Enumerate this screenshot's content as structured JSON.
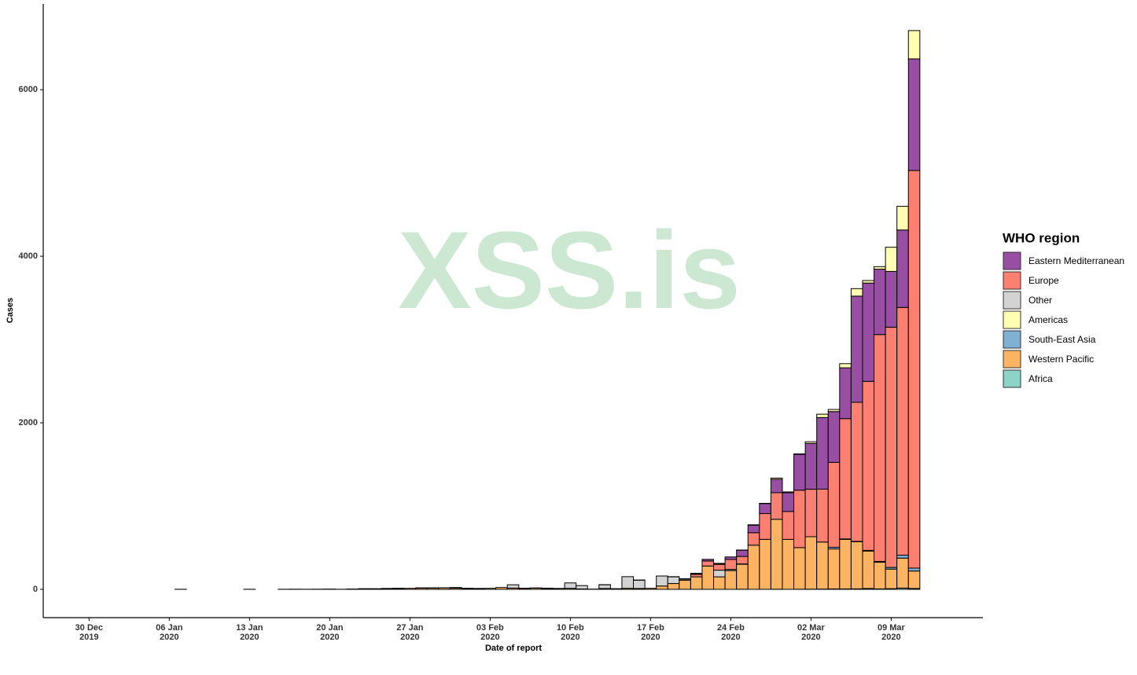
{
  "chart_data": {
    "type": "stacked-bar",
    "watermark": "XSS.is",
    "x_label": "Date of report",
    "y_label": "Cases",
    "legend_title": "WHO region",
    "x": [
      "2020-01-07",
      "2020-01-08",
      "2020-01-09",
      "2020-01-10",
      "2020-01-11",
      "2020-01-12",
      "2020-01-13",
      "2020-01-14",
      "2020-01-15",
      "2020-01-16",
      "2020-01-17",
      "2020-01-18",
      "2020-01-19",
      "2020-01-20",
      "2020-01-21",
      "2020-01-22",
      "2020-01-23",
      "2020-01-24",
      "2020-01-25",
      "2020-01-26",
      "2020-01-27",
      "2020-01-28",
      "2020-01-29",
      "2020-01-30",
      "2020-01-31",
      "2020-02-01",
      "2020-02-02",
      "2020-02-03",
      "2020-02-04",
      "2020-02-05",
      "2020-02-06",
      "2020-02-07",
      "2020-02-08",
      "2020-02-09",
      "2020-02-10",
      "2020-02-11",
      "2020-02-12",
      "2020-02-13",
      "2020-02-14",
      "2020-02-15",
      "2020-02-16",
      "2020-02-17",
      "2020-02-18",
      "2020-02-19",
      "2020-02-20",
      "2020-02-21",
      "2020-02-22",
      "2020-02-23",
      "2020-02-24",
      "2020-02-25",
      "2020-02-26",
      "2020-02-27",
      "2020-02-28",
      "2020-02-29",
      "2020-03-01",
      "2020-03-02",
      "2020-03-03",
      "2020-03-04",
      "2020-03-05",
      "2020-03-06",
      "2020-03-07",
      "2020-03-08",
      "2020-03-09",
      "2020-03-10",
      "2020-03-11"
    ],
    "series": [
      {
        "name": "Eastern Mediterranean",
        "color": "#984ea3",
        "values": [
          0,
          0,
          0,
          0,
          0,
          0,
          0,
          0,
          0,
          0,
          0,
          0,
          0,
          0,
          0,
          0,
          0,
          0,
          0,
          0,
          0,
          0,
          0,
          0,
          0,
          0,
          0,
          0,
          0,
          0,
          0,
          0,
          0,
          0,
          0,
          0,
          0,
          0,
          0,
          0,
          0,
          0,
          0,
          2,
          5,
          10,
          20,
          10,
          30,
          75,
          90,
          120,
          160,
          225,
          430,
          550,
          860,
          610,
          610,
          1275,
          1180,
          785,
          670,
          930,
          1340
        ]
      },
      {
        "name": "Europe",
        "color": "#fb8072",
        "values": [
          0,
          0,
          0,
          0,
          0,
          0,
          0,
          0,
          0,
          0,
          0,
          0,
          0,
          0,
          0,
          0,
          0,
          0,
          3,
          0,
          0,
          4,
          2,
          0,
          6,
          3,
          2,
          0,
          0,
          0,
          2,
          0,
          4,
          3,
          0,
          0,
          0,
          1,
          0,
          0,
          2,
          0,
          0,
          0,
          0,
          30,
          60,
          70,
          120,
          90,
          150,
          310,
          320,
          335,
          690,
          570,
          635,
          1020,
          1445,
          1670,
          2030,
          2725,
          2885,
          2975,
          4775
        ]
      },
      {
        "name": "Other",
        "color": "#d3d3d3",
        "values": [
          0,
          0,
          0,
          0,
          0,
          0,
          0,
          0,
          0,
          0,
          0,
          0,
          0,
          0,
          0,
          0,
          0,
          0,
          0,
          0,
          0,
          0,
          0,
          0,
          0,
          0,
          0,
          0,
          0,
          40,
          0,
          3,
          0,
          0,
          65,
          40,
          0,
          45,
          0,
          140,
          100,
          0,
          120,
          80,
          13,
          0,
          0,
          80,
          14,
          4,
          0,
          0,
          0,
          0,
          0,
          0,
          0,
          0,
          0,
          0,
          0,
          0,
          0,
          0,
          0
        ]
      },
      {
        "name": "Americas",
        "color": "#ffffb3",
        "values": [
          0,
          0,
          0,
          0,
          0,
          0,
          0,
          0,
          0,
          0,
          0,
          0,
          0,
          0,
          1,
          0,
          0,
          1,
          0,
          3,
          0,
          0,
          0,
          0,
          1,
          0,
          0,
          0,
          0,
          0,
          0,
          0,
          0,
          0,
          0,
          0,
          0,
          0,
          0,
          0,
          0,
          0,
          0,
          0,
          0,
          2,
          0,
          2,
          0,
          2,
          5,
          3,
          15,
          10,
          5,
          20,
          40,
          25,
          50,
          90,
          30,
          30,
          290,
          285,
          340
        ]
      },
      {
        "name": "South-East Asia",
        "color": "#80b1d3",
        "values": [
          0,
          0,
          0,
          0,
          0,
          0,
          0,
          0,
          0,
          0,
          0,
          0,
          0,
          0,
          0,
          0,
          0,
          0,
          0,
          0,
          0,
          0,
          0,
          1,
          0,
          0,
          1,
          0,
          0,
          0,
          0,
          0,
          0,
          0,
          0,
          0,
          0,
          0,
          0,
          0,
          0,
          0,
          0,
          0,
          0,
          0,
          0,
          0,
          0,
          0,
          0,
          0,
          0,
          0,
          0,
          0,
          0,
          20,
          5,
          5,
          8,
          10,
          20,
          35,
          35
        ]
      },
      {
        "name": "Western Pacific",
        "color": "#fdb462",
        "values": [
          1,
          0,
          0,
          0,
          0,
          0,
          1,
          0,
          0,
          1,
          2,
          1,
          2,
          3,
          0,
          4,
          8,
          6,
          8,
          10,
          12,
          14,
          16,
          18,
          14,
          10,
          8,
          12,
          22,
          15,
          12,
          14,
          10,
          8,
          12,
          5,
          3,
          10,
          8,
          12,
          10,
          12,
          40,
          70,
          110,
          150,
          280,
          150,
          225,
          300,
          530,
          600,
          840,
          600,
          500,
          630,
          565,
          480,
          595,
          565,
          450,
          320,
          235,
          360,
          210
        ]
      },
      {
        "name": "Africa",
        "color": "#8dd3c7",
        "values": [
          0,
          0,
          0,
          0,
          0,
          0,
          0,
          0,
          0,
          0,
          0,
          0,
          0,
          0,
          0,
          0,
          0,
          0,
          0,
          0,
          0,
          0,
          0,
          0,
          0,
          0,
          0,
          0,
          0,
          0,
          0,
          0,
          0,
          0,
          0,
          0,
          0,
          0,
          0,
          0,
          0,
          0,
          0,
          0,
          0,
          0,
          0,
          0,
          0,
          1,
          0,
          0,
          1,
          0,
          1,
          2,
          3,
          5,
          5,
          6,
          10,
          5,
          8,
          15,
          10
        ]
      }
    ],
    "xlim": [
      "2019-12-26",
      "2020-03-17"
    ],
    "xticks": [
      {
        "value": "2019-12-30",
        "label": "30 Dec\n2019"
      },
      {
        "value": "2020-01-06",
        "label": "06 Jan\n2020"
      },
      {
        "value": "2020-01-13",
        "label": "13 Jan\n2020"
      },
      {
        "value": "2020-01-20",
        "label": "20 Jan\n2020"
      },
      {
        "value": "2020-01-27",
        "label": "27 Jan\n2020"
      },
      {
        "value": "2020-02-03",
        "label": "03 Feb\n2020"
      },
      {
        "value": "2020-02-10",
        "label": "10 Feb\n2020"
      },
      {
        "value": "2020-02-17",
        "label": "17 Feb\n2020"
      },
      {
        "value": "2020-02-24",
        "label": "24 Feb\n2020"
      },
      {
        "value": "2020-03-02",
        "label": "02 Mar\n2020"
      },
      {
        "value": "2020-03-09",
        "label": "09 Mar\n2020"
      }
    ],
    "ylim": [
      -340,
      7030
    ],
    "yticks": [
      0,
      2000,
      4000,
      6000
    ],
    "grid": false,
    "legend": "right"
  }
}
